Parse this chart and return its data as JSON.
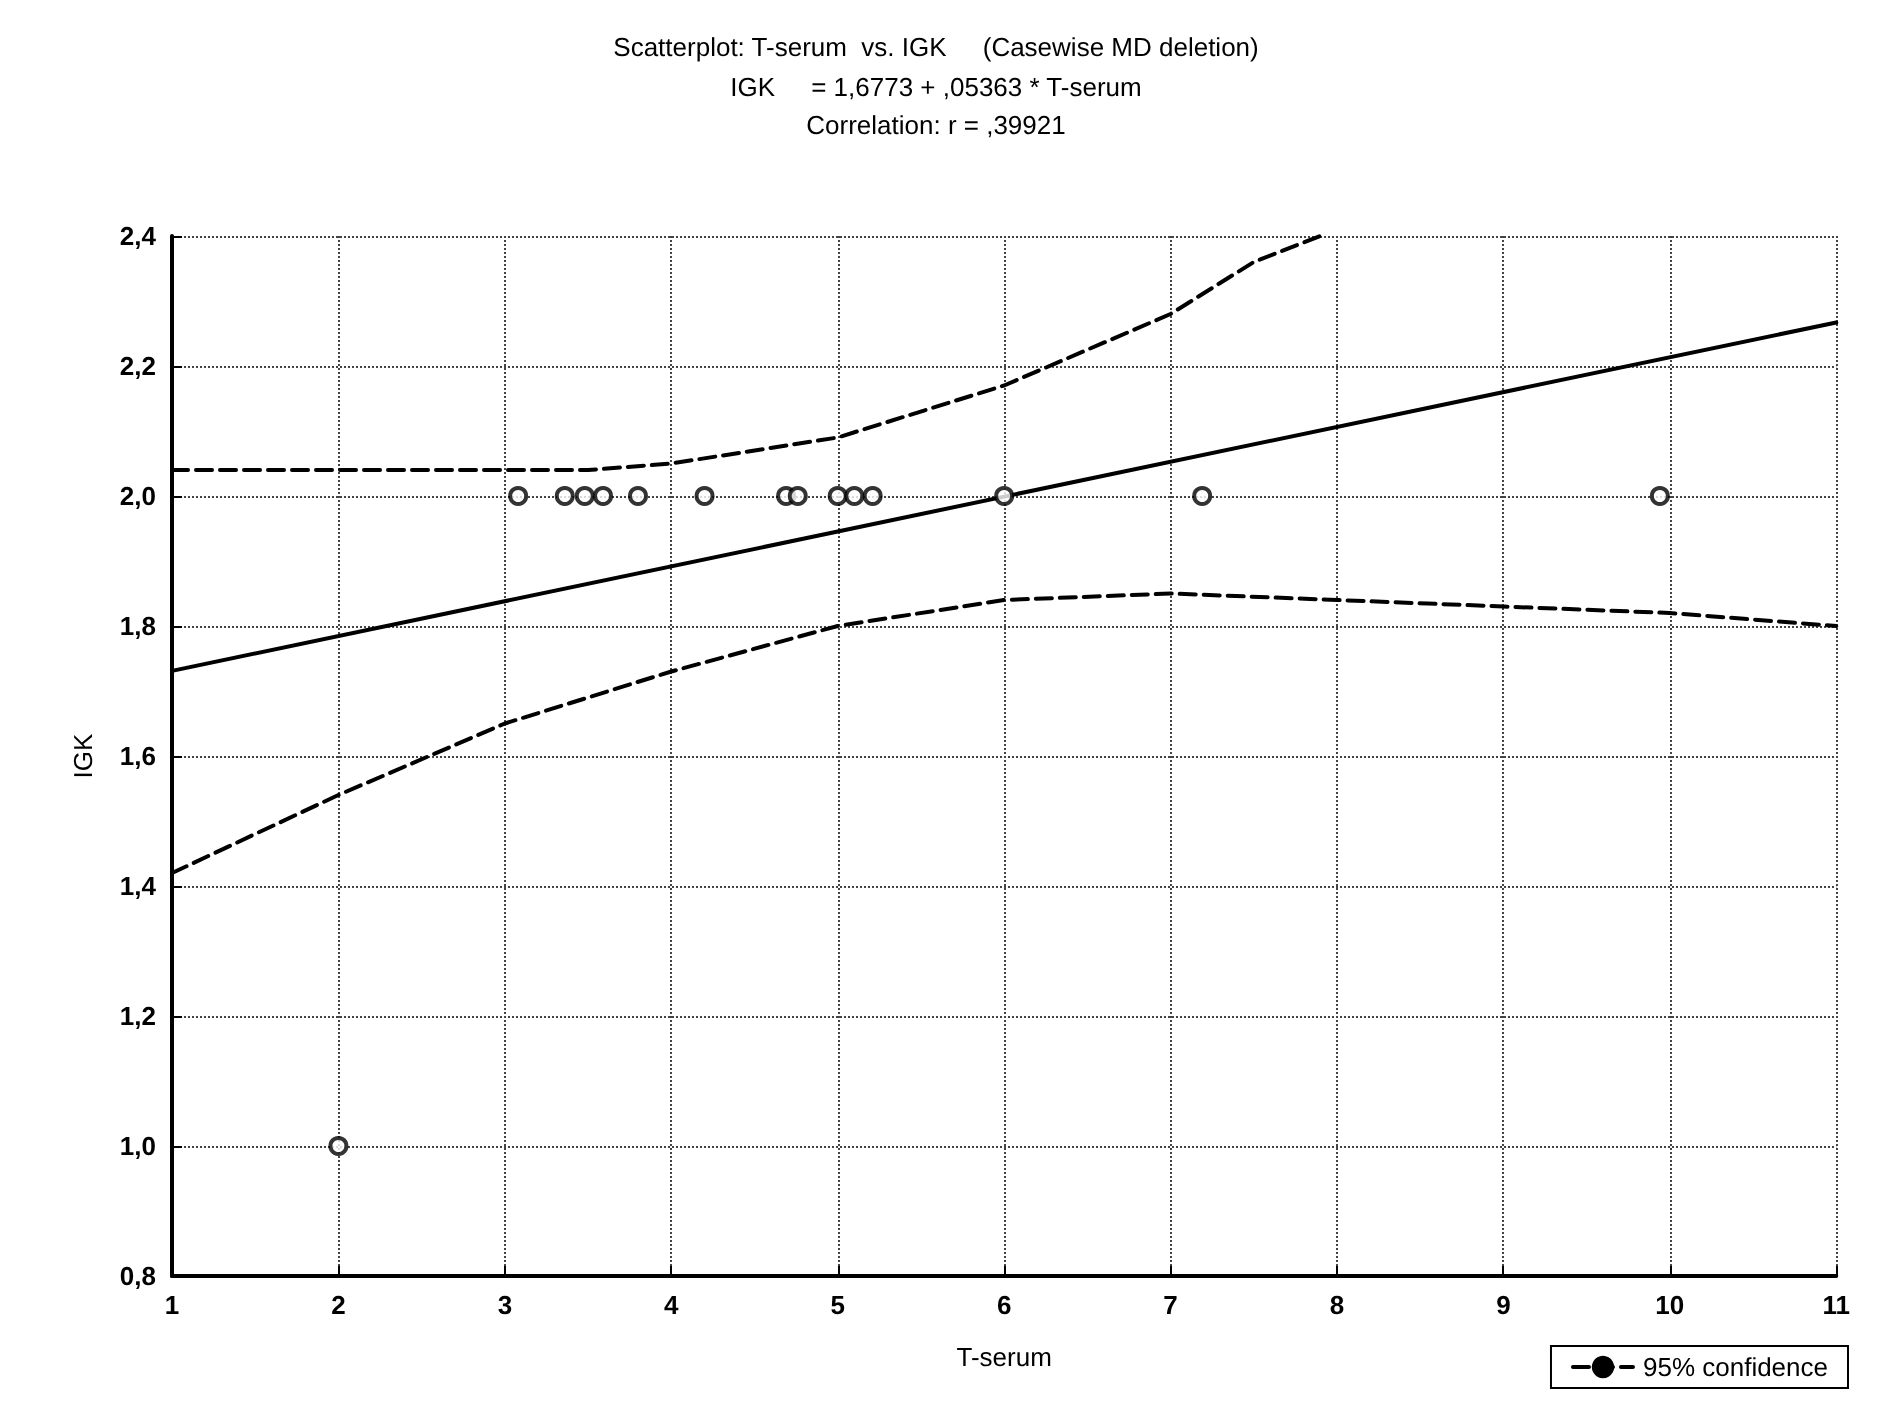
{
  "chart_data": {
    "type": "scatter",
    "title": "Scatterplot: T-serum  vs. IGK     (Casewise MD deletion)",
    "subtitle": "IGK     = 1,6773 + ,05363 * T-serum\nCorrelation: r = ,39921",
    "xlabel": "T-serum",
    "ylabel": "IGK",
    "series": [
      {
        "color": "#000000",
        "marker": "circle",
        "x": [
          2,
          3.08,
          3.36,
          3.48,
          3.59,
          3.8,
          4.2,
          4.69,
          4.76,
          5.0,
          5.1,
          5.21,
          6.0,
          7.19,
          9.94
        ],
        "values": [
          1.0,
          2.0,
          2.0,
          2.0,
          2.0,
          2.0,
          2.0,
          2.0,
          2.0,
          2.0,
          2.0,
          2.0,
          2.0,
          2.0,
          2.0
        ]
      },
      {
        "type": "line",
        "color": "#000000",
        "line_style": "solid",
        "marker": "none",
        "x": [
          1,
          11
        ],
        "values": [
          1.731,
          2.267
        ]
      },
      {
        "type": "line",
        "name": "95% confidence",
        "color": "#000000",
        "line_style": "dashed",
        "marker": "none",
        "x": [
          1,
          2,
          3,
          3.5,
          4,
          5,
          6,
          7,
          7.5,
          7.9
        ],
        "values": [
          2.04,
          2.04,
          2.04,
          2.04,
          2.05,
          2.09,
          2.17,
          2.28,
          2.36,
          2.4
        ]
      },
      {
        "type": "line",
        "color": "#000000",
        "line_style": "dashed",
        "marker": "none",
        "x": [
          1,
          2,
          3,
          4,
          5,
          6,
          7,
          8,
          9,
          10,
          11
        ],
        "values": [
          1.42,
          1.54,
          1.65,
          1.73,
          1.8,
          1.84,
          1.85,
          1.84,
          1.83,
          1.82,
          1.8
        ]
      }
    ],
    "xlim": [
      1,
      11
    ],
    "xticks": [
      1,
      2,
      3,
      4,
      5,
      6,
      7,
      8,
      9,
      10,
      11
    ],
    "ylim": [
      0.8,
      2.4
    ],
    "yticks": [
      {
        "value": 0.8,
        "label": "0,8"
      },
      {
        "value": 1.0,
        "label": "1,0"
      },
      {
        "value": 1.2,
        "label": "1,2"
      },
      {
        "value": 1.4,
        "label": "1,4"
      },
      {
        "value": 1.6,
        "label": "1,6"
      },
      {
        "value": 1.8,
        "label": "1,8"
      },
      {
        "value": 2.0,
        "label": "2,0"
      },
      {
        "value": 2.2,
        "label": "2,2"
      },
      {
        "value": 2.4,
        "label": "2,4"
      }
    ],
    "grid": true,
    "legend": "bottom right"
  }
}
